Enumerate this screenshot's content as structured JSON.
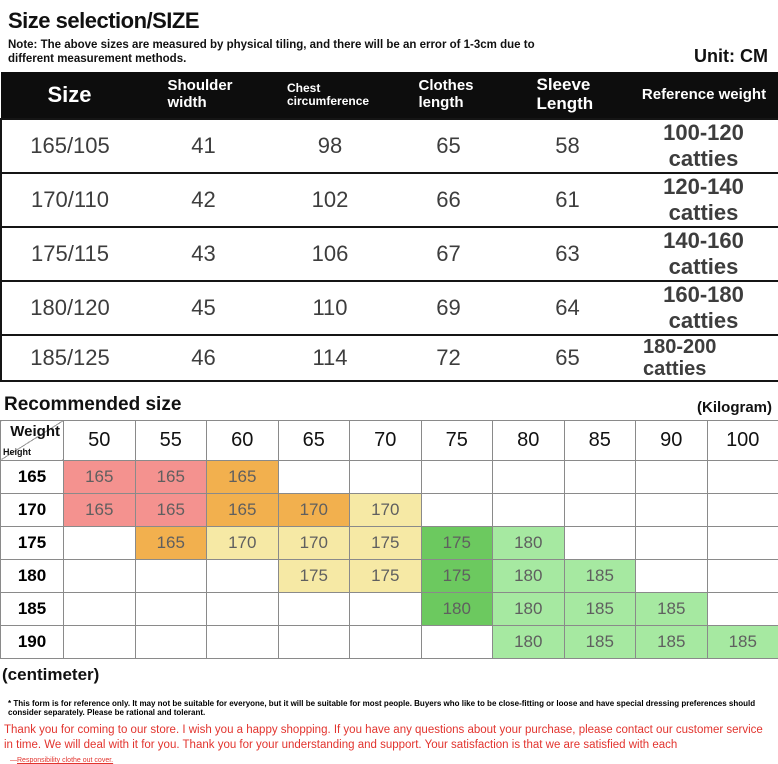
{
  "page": {
    "title": "Size selection/SIZE",
    "note": "Note: The above sizes are measured by physical tiling, and there will be an error of 1-3cm due to different measurement methods.",
    "unit_label": "Unit: CM"
  },
  "size_table": {
    "headers": {
      "size": "Size",
      "shoulder": "Shoulder width",
      "chest": "Chest circumference",
      "clothes": "Clothes length",
      "sleeve": "Sleeve Length",
      "weight": "Reference weight"
    },
    "rows": [
      {
        "size": "165/105",
        "shoulder": "41",
        "chest": "98",
        "length": "65",
        "sleeve": "58",
        "weight": "100-120 catties"
      },
      {
        "size": "170/110",
        "shoulder": "42",
        "chest": "102",
        "length": "66",
        "sleeve": "61",
        "weight": "120-140 catties"
      },
      {
        "size": "175/115",
        "shoulder": "43",
        "chest": "106",
        "length": "67",
        "sleeve": "63",
        "weight": "140-160 catties"
      },
      {
        "size": "180/120",
        "shoulder": "45",
        "chest": "110",
        "length": "69",
        "sleeve": "64",
        "weight": "160-180 catties"
      },
      {
        "size": "185/125",
        "shoulder": "46",
        "chest": "114",
        "length": "72",
        "sleeve": "65",
        "weight": "180-200 catties"
      }
    ]
  },
  "recommended": {
    "heading": "Recommended size",
    "kilogram_label": "(Kilogram)",
    "centimeter_label": "(centimeter)",
    "corner_weight": "Weight",
    "corner_height": "Height",
    "weight_cols": [
      "50",
      "55",
      "60",
      "65",
      "70",
      "75",
      "80",
      "85",
      "90",
      "100"
    ],
    "colors": {
      "pink": "#f4928f",
      "orange": "#f2b04e",
      "yellow": "#f6e9a5",
      "green": "#6cc95f",
      "lightgreen": "#a6e9a1"
    },
    "rows": [
      {
        "height": "165",
        "cells": [
          {
            "v": "165",
            "c": "pink"
          },
          {
            "v": "165",
            "c": "pink"
          },
          {
            "v": "165",
            "c": "orange"
          },
          {},
          {},
          {},
          {},
          {},
          {},
          {}
        ]
      },
      {
        "height": "170",
        "cells": [
          {
            "v": "165",
            "c": "pink"
          },
          {
            "v": "165",
            "c": "pink"
          },
          {
            "v": "165",
            "c": "orange"
          },
          {
            "v": "170",
            "c": "orange"
          },
          {
            "v": "170",
            "c": "yellow"
          },
          {},
          {},
          {},
          {},
          {}
        ]
      },
      {
        "height": "175",
        "cells": [
          {},
          {
            "v": "165",
            "c": "orange"
          },
          {
            "v": "170",
            "c": "yellow"
          },
          {
            "v": "170",
            "c": "yellow"
          },
          {
            "v": "175",
            "c": "yellow"
          },
          {
            "v": "175",
            "c": "green"
          },
          {
            "v": "180",
            "c": "lightgreen"
          },
          {},
          {},
          {}
        ]
      },
      {
        "height": "180",
        "cells": [
          {},
          {},
          {},
          {
            "v": "175",
            "c": "yellow"
          },
          {
            "v": "175",
            "c": "yellow"
          },
          {
            "v": "175",
            "c": "green"
          },
          {
            "v": "180",
            "c": "lightgreen"
          },
          {
            "v": "185",
            "c": "lightgreen"
          },
          {},
          {}
        ]
      },
      {
        "height": "185",
        "cells": [
          {},
          {},
          {},
          {},
          {},
          {
            "v": "180",
            "c": "green"
          },
          {
            "v": "180",
            "c": "lightgreen"
          },
          {
            "v": "185",
            "c": "lightgreen"
          },
          {
            "v": "185",
            "c": "lightgreen"
          },
          {}
        ]
      },
      {
        "height": "190",
        "cells": [
          {},
          {},
          {},
          {},
          {},
          {},
          {
            "v": "180",
            "c": "lightgreen"
          },
          {
            "v": "185",
            "c": "lightgreen"
          },
          {
            "v": "185",
            "c": "lightgreen"
          },
          {
            "v": "185",
            "c": "lightgreen"
          }
        ]
      }
    ]
  },
  "footer": {
    "disclaimer": "* This form is for reference only. It may not be suitable for everyone, but it will be suitable for most people. Buyers who like to be close-fitting or loose and have special dressing preferences should consider separately. Please be rational and tolerant.",
    "thanks": "Thank you for coming to our store. I wish you a happy shopping. If you have any questions about your purchase, please contact our customer service in time. We will deal with it for you. Thank you for your understanding and support. Your satisfaction is that we are satisfied with each",
    "tiny_prefix": "—",
    "tiny": "Responsibility clothe out cover."
  }
}
